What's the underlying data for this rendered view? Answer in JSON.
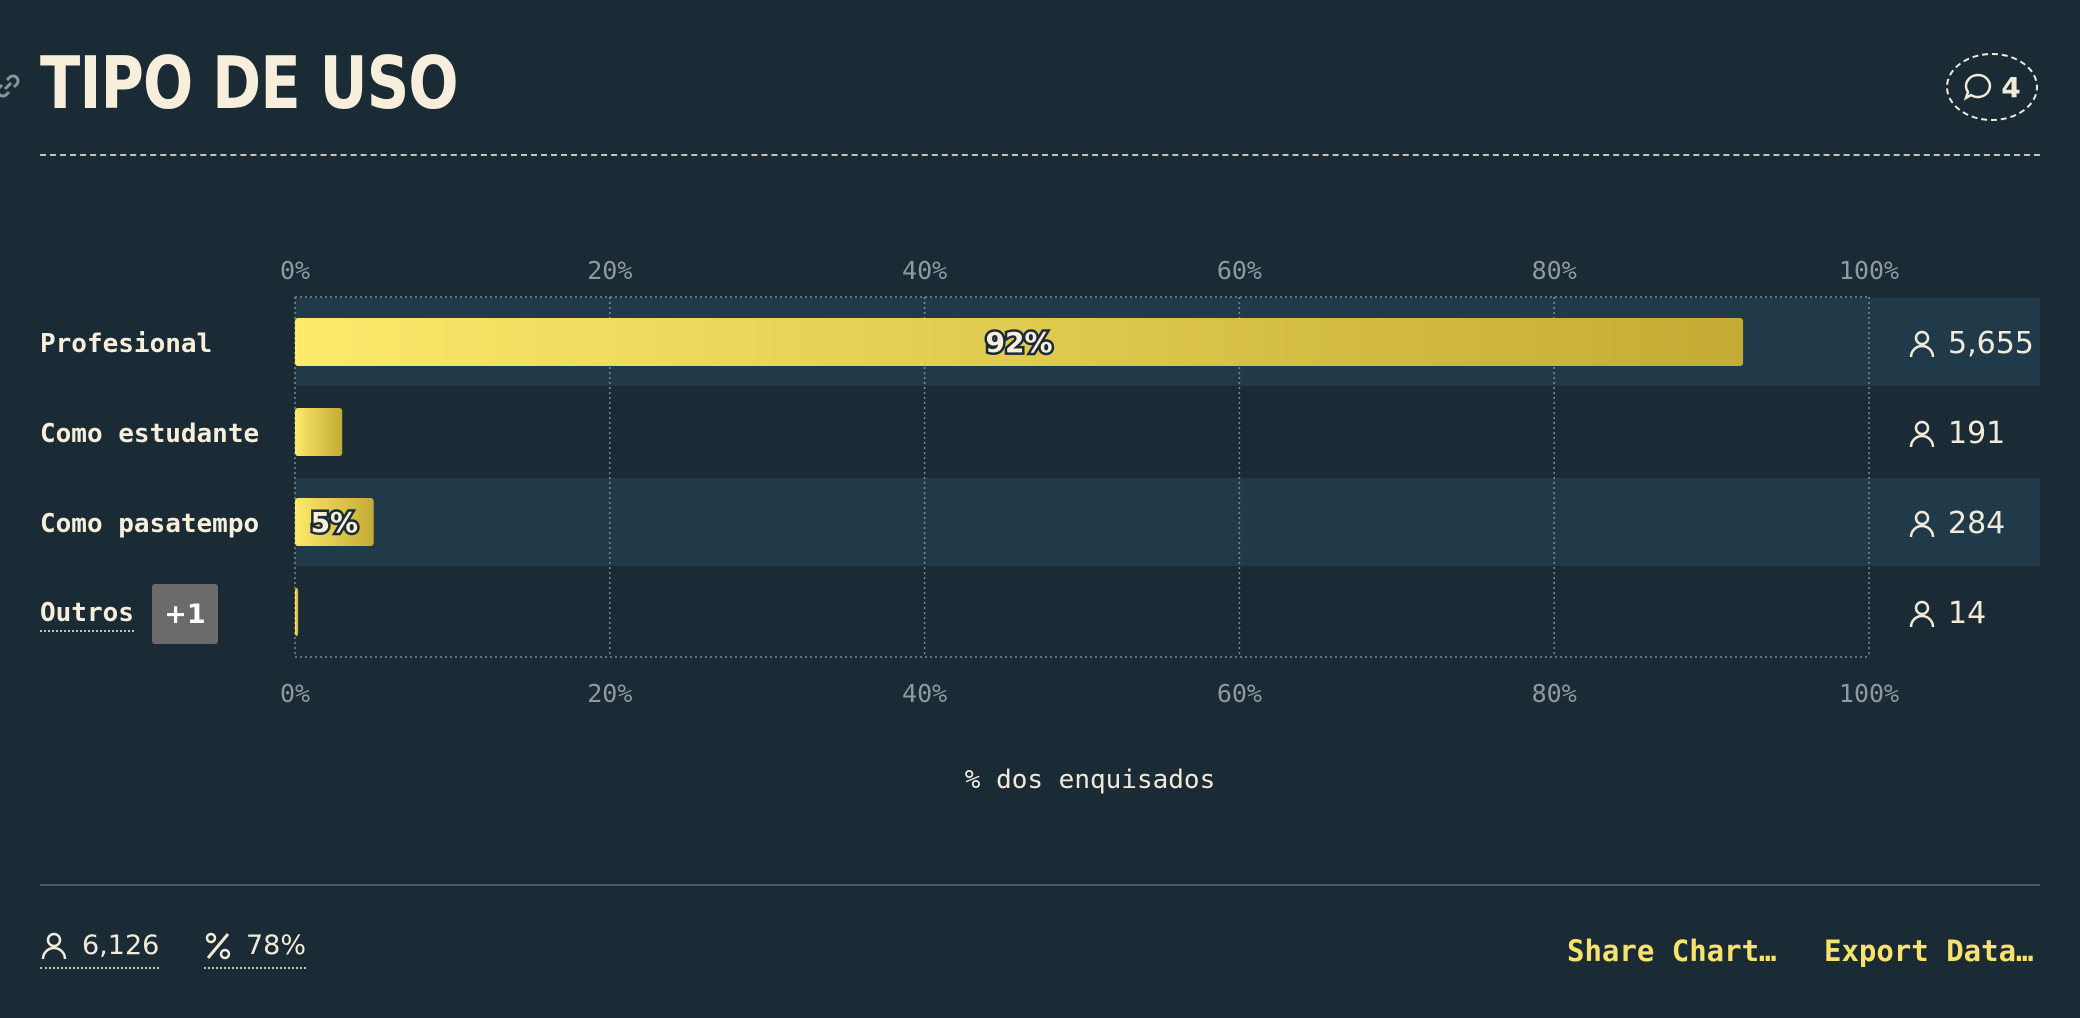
{
  "title": "TIPO DE USO",
  "comments": {
    "count": "4"
  },
  "chart_data": {
    "type": "bar",
    "orientation": "horizontal",
    "categories": [
      "Profesional",
      "Como estudante",
      "Como pasatempo",
      "Outros"
    ],
    "values": [
      92,
      3,
      5,
      0.2
    ],
    "value_labels": [
      "92%",
      "",
      "5%",
      ""
    ],
    "counts": [
      "5,655",
      "191",
      "284",
      "14"
    ],
    "xlim": [
      0,
      100
    ],
    "xticks": [
      "0%",
      "20%",
      "40%",
      "60%",
      "80%",
      "100%"
    ],
    "xlabel": "% dos enquisados",
    "grid": true,
    "colors": {
      "bar_start": "#fde96a",
      "bar_end": "#c4ab35",
      "row_highlight": "#213a4a"
    }
  },
  "others_badge": "+1",
  "footer": {
    "total_respondents": "6,126",
    "percent_respondents": "78%",
    "share_label": "Share Chart…",
    "export_label": "Export Data…"
  }
}
